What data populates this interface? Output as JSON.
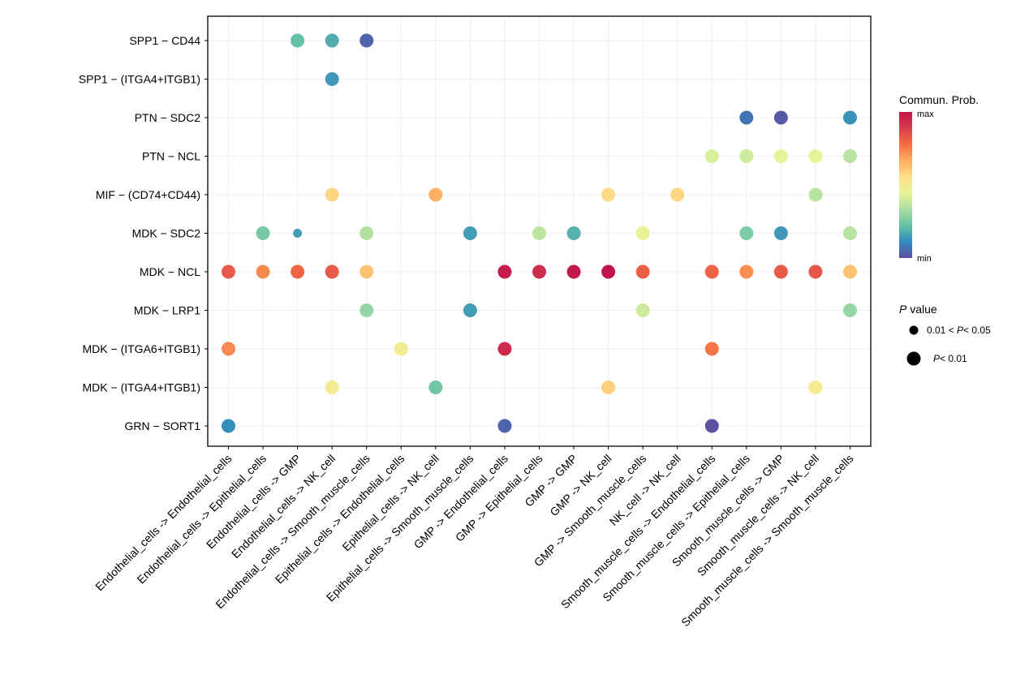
{
  "chart_data": {
    "type": "scatter",
    "title": "",
    "xlabel": "",
    "ylabel": "",
    "grid": true,
    "x_categories": [
      "Endothelial_cells -> Endothelial_cells",
      "Endothelial_cells -> Epithelial_cells",
      "Endothelial_cells -> GMP",
      "Endothelial_cells -> NK_cell",
      "Endothelial_cells -> Smooth_muscle_cells",
      "Epithelial_cells -> Endothelial_cells",
      "Epithelial_cells -> NK_cell",
      "Epithelial_cells -> Smooth_muscle_cells",
      "GMP -> Endothelial_cells",
      "GMP -> Epithelial_cells",
      "GMP -> GMP",
      "GMP -> NK_cell",
      "GMP -> Smooth_muscle_cells",
      "NK_cell -> NK_cell",
      "Smooth_muscle_cells -> Endothelial_cells",
      "Smooth_muscle_cells -> Epithelial_cells",
      "Smooth_muscle_cells -> GMP",
      "Smooth_muscle_cells -> NK_cell",
      "Smooth_muscle_cells -> Smooth_muscle_cells"
    ],
    "y_categories": [
      "SPP1 - CD44",
      "SPP1 - (ITGA4+ITGB1)",
      "PTN - SDC2",
      "PTN - NCL",
      "MIF - (CD74+CD44)",
      "MDK - SDC2",
      "MDK - NCL",
      "MDK - LRP1",
      "MDK - (ITGA6+ITGB1)",
      "MDK - (ITGA4+ITGB1)",
      "GRN - SORT1"
    ],
    "points": [
      {
        "x": 2,
        "y": 0,
        "prob": 0.22,
        "p": "p<0.01"
      },
      {
        "x": 3,
        "y": 0,
        "prob": 0.18,
        "p": "p<0.01"
      },
      {
        "x": 4,
        "y": 0,
        "prob": 0.04,
        "p": "p<0.01"
      },
      {
        "x": 3,
        "y": 1,
        "prob": 0.14,
        "p": "p<0.01"
      },
      {
        "x": 15,
        "y": 2,
        "prob": 0.07,
        "p": "p<0.01"
      },
      {
        "x": 16,
        "y": 2,
        "prob": 0.02,
        "p": "p<0.01"
      },
      {
        "x": 18,
        "y": 2,
        "prob": 0.13,
        "p": "p<0.01"
      },
      {
        "x": 14,
        "y": 3,
        "prob": 0.42,
        "p": "p<0.01"
      },
      {
        "x": 15,
        "y": 3,
        "prob": 0.4,
        "p": "p<0.01"
      },
      {
        "x": 16,
        "y": 3,
        "prob": 0.44,
        "p": "p<0.01"
      },
      {
        "x": 17,
        "y": 3,
        "prob": 0.45,
        "p": "p<0.01"
      },
      {
        "x": 18,
        "y": 3,
        "prob": 0.36,
        "p": "p<0.01"
      },
      {
        "x": 3,
        "y": 4,
        "prob": 0.58,
        "p": "p<0.01"
      },
      {
        "x": 6,
        "y": 4,
        "prob": 0.66,
        "p": "p<0.01"
      },
      {
        "x": 11,
        "y": 4,
        "prob": 0.57,
        "p": "p<0.01"
      },
      {
        "x": 13,
        "y": 4,
        "prob": 0.58,
        "p": "p<0.01"
      },
      {
        "x": 17,
        "y": 4,
        "prob": 0.36,
        "p": "p<0.01"
      },
      {
        "x": 1,
        "y": 5,
        "prob": 0.25,
        "p": "p<0.01"
      },
      {
        "x": 2,
        "y": 5,
        "prob": 0.15,
        "p": "0.01<p<0.05"
      },
      {
        "x": 4,
        "y": 5,
        "prob": 0.35,
        "p": "p<0.01"
      },
      {
        "x": 7,
        "y": 5,
        "prob": 0.15,
        "p": "p<0.01"
      },
      {
        "x": 9,
        "y": 5,
        "prob": 0.37,
        "p": "p<0.01"
      },
      {
        "x": 10,
        "y": 5,
        "prob": 0.19,
        "p": "p<0.01"
      },
      {
        "x": 12,
        "y": 5,
        "prob": 0.46,
        "p": "p<0.01"
      },
      {
        "x": 15,
        "y": 5,
        "prob": 0.26,
        "p": "p<0.01"
      },
      {
        "x": 16,
        "y": 5,
        "prob": 0.14,
        "p": "p<0.01"
      },
      {
        "x": 18,
        "y": 5,
        "prob": 0.36,
        "p": "p<0.01"
      },
      {
        "x": 0,
        "y": 6,
        "prob": 0.82,
        "p": "p<0.01"
      },
      {
        "x": 1,
        "y": 6,
        "prob": 0.73,
        "p": "p<0.01"
      },
      {
        "x": 2,
        "y": 6,
        "prob": 0.8,
        "p": "p<0.01"
      },
      {
        "x": 3,
        "y": 6,
        "prob": 0.82,
        "p": "p<0.01"
      },
      {
        "x": 4,
        "y": 6,
        "prob": 0.62,
        "p": "p<0.01"
      },
      {
        "x": 8,
        "y": 6,
        "prob": 0.98,
        "p": "p<0.01"
      },
      {
        "x": 9,
        "y": 6,
        "prob": 0.93,
        "p": "p<0.01"
      },
      {
        "x": 10,
        "y": 6,
        "prob": 0.99,
        "p": "p<0.01"
      },
      {
        "x": 11,
        "y": 6,
        "prob": 1.0,
        "p": "p<0.01"
      },
      {
        "x": 12,
        "y": 6,
        "prob": 0.81,
        "p": "p<0.01"
      },
      {
        "x": 14,
        "y": 6,
        "prob": 0.8,
        "p": "p<0.01"
      },
      {
        "x": 15,
        "y": 6,
        "prob": 0.72,
        "p": "p<0.01"
      },
      {
        "x": 16,
        "y": 6,
        "prob": 0.82,
        "p": "p<0.01"
      },
      {
        "x": 17,
        "y": 6,
        "prob": 0.83,
        "p": "p<0.01"
      },
      {
        "x": 18,
        "y": 6,
        "prob": 0.62,
        "p": "p<0.01"
      },
      {
        "x": 4,
        "y": 7,
        "prob": 0.3,
        "p": "p<0.01"
      },
      {
        "x": 7,
        "y": 7,
        "prob": 0.15,
        "p": "p<0.01"
      },
      {
        "x": 12,
        "y": 7,
        "prob": 0.4,
        "p": "p<0.01"
      },
      {
        "x": 18,
        "y": 7,
        "prob": 0.3,
        "p": "p<0.01"
      },
      {
        "x": 0,
        "y": 8,
        "prob": 0.73,
        "p": "p<0.01"
      },
      {
        "x": 5,
        "y": 8,
        "prob": 0.5,
        "p": "p<0.01"
      },
      {
        "x": 8,
        "y": 8,
        "prob": 0.94,
        "p": "p<0.01"
      },
      {
        "x": 14,
        "y": 8,
        "prob": 0.76,
        "p": "p<0.01"
      },
      {
        "x": 3,
        "y": 9,
        "prob": 0.5,
        "p": "p<0.01"
      },
      {
        "x": 6,
        "y": 9,
        "prob": 0.24,
        "p": "p<0.01"
      },
      {
        "x": 11,
        "y": 9,
        "prob": 0.59,
        "p": "p<0.01"
      },
      {
        "x": 17,
        "y": 9,
        "prob": 0.5,
        "p": "p<0.01"
      },
      {
        "x": 0,
        "y": 10,
        "prob": 0.12,
        "p": "p<0.01"
      },
      {
        "x": 8,
        "y": 10,
        "prob": 0.04,
        "p": "p<0.01"
      },
      {
        "x": 14,
        "y": 10,
        "prob": 0.0,
        "p": "p<0.01"
      }
    ],
    "legend": {
      "color_title": "Commun. Prob.",
      "color_max_label": "max",
      "color_min_label": "min",
      "size_title_italic": "P",
      "size_title_rest": " value",
      "size_entries": [
        {
          "key": "0.01<p<0.05",
          "prefix": "0.01 < ",
          "italic": "P",
          "suffix": "< 0.05"
        },
        {
          "key": "p<0.01",
          "prefix": "",
          "italic": "P",
          "suffix": "< 0.01"
        }
      ],
      "placement": "right"
    },
    "colormap": [
      "#5E4FA2",
      "#3288BD",
      "#66C2A5",
      "#ABDDA4",
      "#E6F598",
      "#FEE08B",
      "#FDAE61",
      "#F46D43",
      "#D53E4F",
      "#C2144A"
    ]
  }
}
